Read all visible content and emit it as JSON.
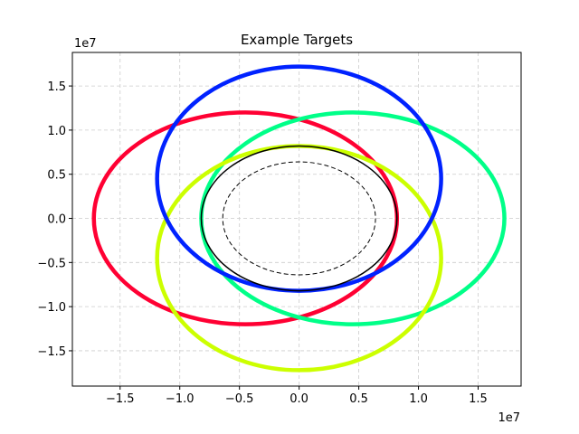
{
  "chart_data": {
    "type": "line",
    "title": "Example Targets",
    "xlabel": "",
    "ylabel": "",
    "x_offset_label": "1e7",
    "y_offset_label": "1e7",
    "xlim": [
      -19000000.0,
      18600000.0
    ],
    "ylim": [
      -19000000.0,
      18800000.0
    ],
    "x_ticks": [
      -15000000.0,
      -10000000.0,
      -5000000.0,
      0,
      5000000.0,
      10000000.0,
      15000000.0
    ],
    "x_tick_labels": [
      "−1.5",
      "−1.0",
      "−0.5",
      "0.0",
      "0.5",
      "1.0",
      "1.5"
    ],
    "y_ticks": [
      -15000000.0,
      -10000000.0,
      -5000000.0,
      0,
      5000000.0,
      10000000.0,
      15000000.0
    ],
    "y_tick_labels": [
      "−1.5",
      "−1.0",
      "−0.5",
      "0.0",
      "0.5",
      "1.0",
      "1.5"
    ],
    "grid": true,
    "grid_style": "dashed",
    "legend": "none",
    "series": [
      {
        "color": "#ff0033",
        "center": [
          -4500000.0,
          0
        ],
        "rx": 12700000.0,
        "ry": 12000000.0,
        "dashed": false,
        "width": 4.5
      },
      {
        "color": "#00ff88",
        "center": [
          4500000.0,
          0
        ],
        "rx": 12700000.0,
        "ry": 12000000.0,
        "dashed": false,
        "width": 4.5
      },
      {
        "color": "#ccff00",
        "center": [
          0,
          -4500000.0
        ],
        "rx": 11900000.0,
        "ry": 12700000.0,
        "dashed": false,
        "width": 4.5
      },
      {
        "color": "#0022ff",
        "center": [
          0,
          4500000.0
        ],
        "rx": 11900000.0,
        "ry": 12700000.0,
        "dashed": false,
        "width": 4.5
      },
      {
        "color": "#000000",
        "center": [
          0,
          0
        ],
        "rx": 8200000.0,
        "ry": 8200000.0,
        "dashed": false,
        "width": 1.5
      },
      {
        "color": "#000000",
        "center": [
          0,
          0
        ],
        "rx": 6400000.0,
        "ry": 6400000.0,
        "dashed": true,
        "width": 1.0
      }
    ]
  }
}
